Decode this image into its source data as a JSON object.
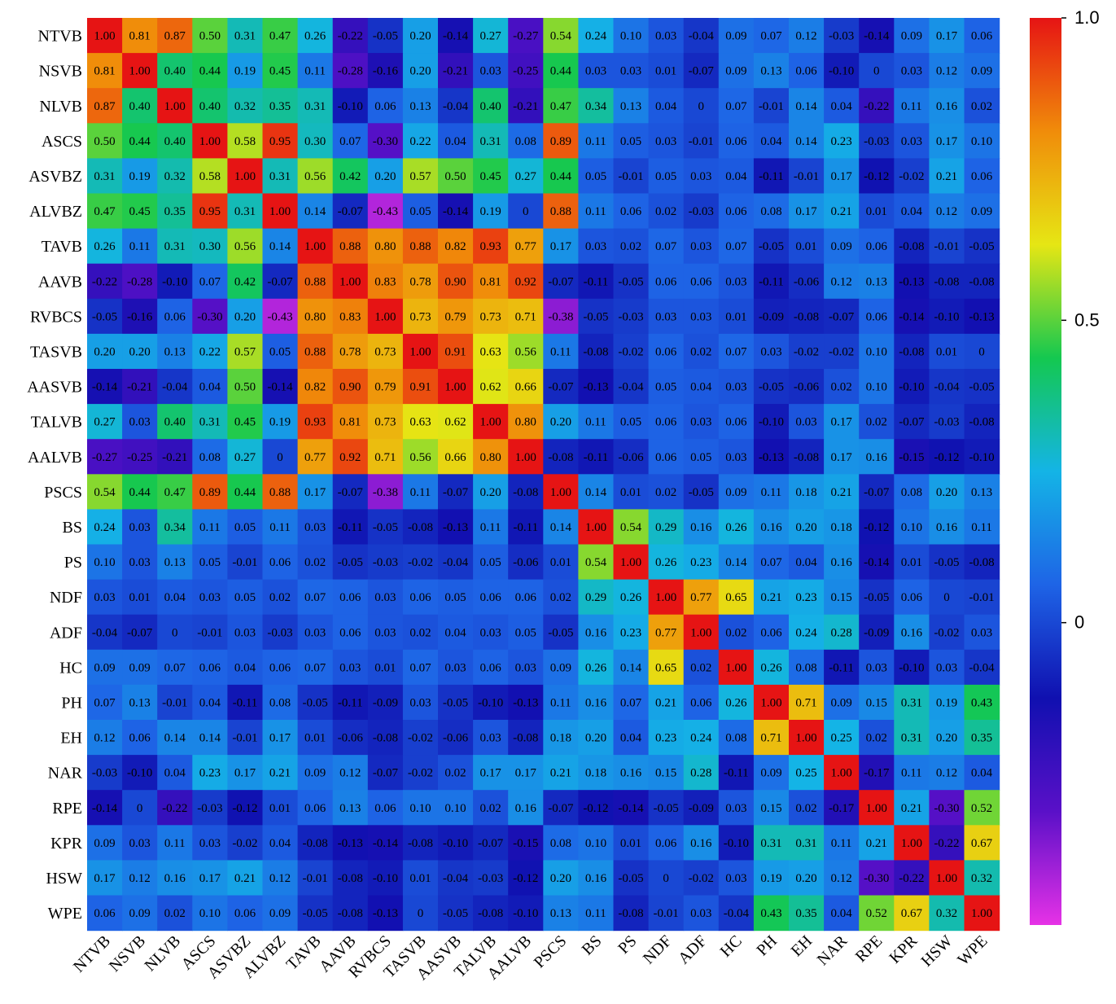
{
  "chart_data": {
    "type": "heatmap",
    "title": "",
    "xlabel": "",
    "ylabel": "",
    "variables": [
      "NTVB",
      "NSVB",
      "NLVB",
      "ASCS",
      "ASVBZ",
      "ALVBZ",
      "TAVB",
      "AAVB",
      "RVBCS",
      "TASVB",
      "AASVB",
      "TALVB",
      "AALVB",
      "PSCS",
      "BS",
      "PS",
      "NDF",
      "ADF",
      "HC",
      "PH",
      "EH",
      "NAR",
      "RPE",
      "KPR",
      "HSW",
      "WPE"
    ],
    "values": [
      [
        1.0,
        0.81,
        0.87,
        0.5,
        0.31,
        0.47,
        0.26,
        -0.22,
        -0.05,
        0.2,
        -0.14,
        0.27,
        -0.27,
        0.54,
        0.24,
        0.1,
        0.03,
        -0.04,
        0.09,
        0.07,
        0.12,
        -0.03,
        -0.14,
        0.09,
        0.17,
        0.06
      ],
      [
        0.81,
        1.0,
        0.4,
        0.44,
        0.19,
        0.45,
        0.11,
        -0.28,
        -0.16,
        0.2,
        -0.21,
        0.03,
        -0.25,
        0.44,
        0.03,
        0.03,
        0.01,
        -0.07,
        0.09,
        0.13,
        0.06,
        -0.1,
        0,
        0.03,
        0.12,
        0.09
      ],
      [
        0.87,
        0.4,
        1.0,
        0.4,
        0.32,
        0.35,
        0.31,
        -0.1,
        0.06,
        0.13,
        -0.04,
        0.4,
        -0.21,
        0.47,
        0.34,
        0.13,
        0.04,
        0,
        0.07,
        -0.01,
        0.14,
        0.04,
        -0.22,
        0.11,
        0.16,
        0.02
      ],
      [
        0.5,
        0.44,
        0.4,
        1.0,
        0.58,
        0.95,
        0.3,
        0.07,
        -0.3,
        0.22,
        0.04,
        0.31,
        0.08,
        0.89,
        0.11,
        0.05,
        0.03,
        -0.01,
        0.06,
        0.04,
        0.14,
        0.23,
        -0.03,
        0.03,
        0.17,
        0.1
      ],
      [
        0.31,
        0.19,
        0.32,
        0.58,
        1.0,
        0.31,
        0.56,
        0.42,
        0.2,
        0.57,
        0.5,
        0.45,
        0.27,
        0.44,
        0.05,
        -0.01,
        0.05,
        0.03,
        0.04,
        -0.11,
        -0.01,
        0.17,
        -0.12,
        -0.02,
        0.21,
        0.06
      ],
      [
        0.47,
        0.45,
        0.35,
        0.95,
        0.31,
        1.0,
        0.14,
        -0.07,
        -0.43,
        0.05,
        -0.14,
        0.19,
        0,
        0.88,
        0.11,
        0.06,
        0.02,
        -0.03,
        0.06,
        0.08,
        0.17,
        0.21,
        0.01,
        0.04,
        0.12,
        0.09
      ],
      [
        0.26,
        0.11,
        0.31,
        0.3,
        0.56,
        0.14,
        1.0,
        0.88,
        0.8,
        0.88,
        0.82,
        0.93,
        0.77,
        0.17,
        0.03,
        0.02,
        0.07,
        0.03,
        0.07,
        -0.05,
        0.01,
        0.09,
        0.06,
        -0.08,
        -0.01,
        -0.05
      ],
      [
        -0.22,
        -0.28,
        -0.1,
        0.07,
        0.42,
        -0.07,
        0.88,
        1.0,
        0.83,
        0.78,
        0.9,
        0.81,
        0.92,
        -0.07,
        -0.11,
        -0.05,
        0.06,
        0.06,
        0.03,
        -0.11,
        -0.06,
        0.12,
        0.13,
        -0.13,
        -0.08,
        -0.08
      ],
      [
        -0.05,
        -0.16,
        0.06,
        -0.3,
        0.2,
        -0.43,
        0.8,
        0.83,
        1.0,
        0.73,
        0.79,
        0.73,
        0.71,
        -0.38,
        -0.05,
        -0.03,
        0.03,
        0.03,
        0.01,
        -0.09,
        -0.08,
        -0.07,
        0.06,
        -0.14,
        -0.1,
        -0.13
      ],
      [
        0.2,
        0.2,
        0.13,
        0.22,
        0.57,
        0.05,
        0.88,
        0.78,
        0.73,
        1.0,
        0.91,
        0.63,
        0.56,
        0.11,
        -0.08,
        -0.02,
        0.06,
        0.02,
        0.07,
        0.03,
        -0.02,
        -0.02,
        0.1,
        -0.08,
        0.01,
        0
      ],
      [
        -0.14,
        -0.21,
        -0.04,
        0.04,
        0.5,
        -0.14,
        0.82,
        0.9,
        0.79,
        0.91,
        1.0,
        0.62,
        0.66,
        -0.07,
        -0.13,
        -0.04,
        0.05,
        0.04,
        0.03,
        -0.05,
        -0.06,
        0.02,
        0.1,
        -0.1,
        -0.04,
        -0.05
      ],
      [
        0.27,
        0.03,
        0.4,
        0.31,
        0.45,
        0.19,
        0.93,
        0.81,
        0.73,
        0.63,
        0.62,
        1.0,
        0.8,
        0.2,
        0.11,
        0.05,
        0.06,
        0.03,
        0.06,
        -0.1,
        0.03,
        0.17,
        0.02,
        -0.07,
        -0.03,
        -0.08
      ],
      [
        -0.27,
        -0.25,
        -0.21,
        0.08,
        0.27,
        0,
        0.77,
        0.92,
        0.71,
        0.56,
        0.66,
        0.8,
        1.0,
        -0.08,
        -0.11,
        -0.06,
        0.06,
        0.05,
        0.03,
        -0.13,
        -0.08,
        0.17,
        0.16,
        -0.15,
        -0.12,
        -0.1
      ],
      [
        0.54,
        0.44,
        0.47,
        0.89,
        0.44,
        0.88,
        0.17,
        -0.07,
        -0.38,
        0.11,
        -0.07,
        0.2,
        -0.08,
        1.0,
        0.14,
        0.01,
        0.02,
        -0.05,
        0.09,
        0.11,
        0.18,
        0.21,
        -0.07,
        0.08,
        0.2,
        0.13
      ],
      [
        0.24,
        0.03,
        0.34,
        0.11,
        0.05,
        0.11,
        0.03,
        -0.11,
        -0.05,
        -0.08,
        -0.13,
        0.11,
        -0.11,
        0.14,
        1.0,
        0.54,
        0.29,
        0.16,
        0.26,
        0.16,
        0.2,
        0.18,
        -0.12,
        0.1,
        0.16,
        0.11
      ],
      [
        0.1,
        0.03,
        0.13,
        0.05,
        -0.01,
        0.06,
        0.02,
        -0.05,
        -0.03,
        -0.02,
        -0.04,
        0.05,
        -0.06,
        0.01,
        0.54,
        1.0,
        0.26,
        0.23,
        0.14,
        0.07,
        0.04,
        0.16,
        -0.14,
        0.01,
        -0.05,
        -0.08
      ],
      [
        0.03,
        0.01,
        0.04,
        0.03,
        0.05,
        0.02,
        0.07,
        0.06,
        0.03,
        0.06,
        0.05,
        0.06,
        0.06,
        0.02,
        0.29,
        0.26,
        1.0,
        0.77,
        0.65,
        0.21,
        0.23,
        0.15,
        -0.05,
        0.06,
        0,
        -0.01
      ],
      [
        -0.04,
        -0.07,
        0,
        -0.01,
        0.03,
        -0.03,
        0.03,
        0.06,
        0.03,
        0.02,
        0.04,
        0.03,
        0.05,
        -0.05,
        0.16,
        0.23,
        0.77,
        1.0,
        0.02,
        0.06,
        0.24,
        0.28,
        -0.09,
        0.16,
        -0.02,
        0.03
      ],
      [
        0.09,
        0.09,
        0.07,
        0.06,
        0.04,
        0.06,
        0.07,
        0.03,
        0.01,
        0.07,
        0.03,
        0.06,
        0.03,
        0.09,
        0.26,
        0.14,
        0.65,
        0.02,
        1.0,
        0.26,
        0.08,
        -0.11,
        0.03,
        -0.1,
        0.03,
        -0.04
      ],
      [
        0.07,
        0.13,
        -0.01,
        0.04,
        -0.11,
        0.08,
        -0.05,
        -0.11,
        -0.09,
        0.03,
        -0.05,
        -0.1,
        -0.13,
        0.11,
        0.16,
        0.07,
        0.21,
        0.06,
        0.26,
        1.0,
        0.71,
        0.09,
        0.15,
        0.31,
        0.19,
        0.43
      ],
      [
        0.12,
        0.06,
        0.14,
        0.14,
        -0.01,
        0.17,
        0.01,
        -0.06,
        -0.08,
        -0.02,
        -0.06,
        0.03,
        -0.08,
        0.18,
        0.2,
        0.04,
        0.23,
        0.24,
        0.08,
        0.71,
        1.0,
        0.25,
        0.02,
        0.31,
        0.2,
        0.35
      ],
      [
        -0.03,
        -0.1,
        0.04,
        0.23,
        0.17,
        0.21,
        0.09,
        0.12,
        -0.07,
        -0.02,
        0.02,
        0.17,
        0.17,
        0.21,
        0.18,
        0.16,
        0.15,
        0.28,
        -0.11,
        0.09,
        0.25,
        1.0,
        -0.17,
        0.11,
        0.12,
        0.04
      ],
      [
        -0.14,
        0,
        -0.22,
        -0.03,
        -0.12,
        0.01,
        0.06,
        0.13,
        0.06,
        0.1,
        0.1,
        0.02,
        0.16,
        -0.07,
        -0.12,
        -0.14,
        -0.05,
        -0.09,
        0.03,
        0.15,
        0.02,
        -0.17,
        1.0,
        0.21,
        -0.3,
        0.52
      ],
      [
        0.09,
        0.03,
        0.11,
        0.03,
        -0.02,
        0.04,
        -0.08,
        -0.13,
        -0.14,
        -0.08,
        -0.1,
        -0.07,
        -0.15,
        0.08,
        0.1,
        0.01,
        0.06,
        0.16,
        -0.1,
        0.31,
        0.31,
        0.11,
        0.21,
        1.0,
        -0.22,
        0.67
      ],
      [
        0.17,
        0.12,
        0.16,
        0.17,
        0.21,
        0.12,
        -0.01,
        -0.08,
        -0.1,
        0.01,
        -0.04,
        -0.03,
        -0.12,
        0.2,
        0.16,
        -0.05,
        0,
        -0.02,
        0.03,
        0.19,
        0.2,
        0.12,
        -0.3,
        -0.22,
        1.0,
        0.32
      ],
      [
        0.06,
        0.09,
        0.02,
        0.1,
        0.06,
        0.09,
        -0.05,
        -0.08,
        -0.13,
        0,
        -0.05,
        -0.08,
        -0.1,
        0.13,
        0.11,
        -0.08,
        -0.01,
        0.03,
        -0.04,
        0.43,
        0.35,
        0.04,
        0.52,
        0.67,
        0.32,
        1.0
      ]
    ],
    "colorbar": {
      "range": [
        -0.5,
        1.0
      ],
      "ticks": [
        {
          "value": 1.0,
          "label": "1.0"
        },
        {
          "value": 0.5,
          "label": "0.5"
        },
        {
          "value": 0.0,
          "label": "0"
        }
      ],
      "colors": [
        "#e632e6",
        "#5a10c8",
        "#1010b0",
        "#1e64e6",
        "#14b4e6",
        "#14c850",
        "#e6e614",
        "#f08c0a",
        "#e61414"
      ]
    }
  }
}
